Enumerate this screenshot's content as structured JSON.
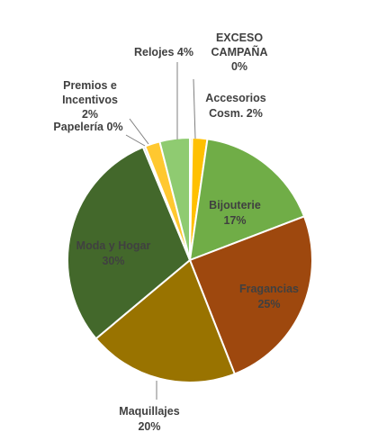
{
  "chart_data": {
    "type": "pie",
    "title": "",
    "colors": {
      "exceso_campana": "#FFE699",
      "accesorios_cosm": "#FFC000",
      "bijouterie": "#70AD47",
      "fragancias": "#9E480E",
      "maquillajes": "#997300",
      "moda_hogar": "#43682B",
      "papeleria": "#B4C7E7",
      "premios_incentivos": "#FFC830",
      "relojes": "#8FCB71",
      "border": "#FFFFFF",
      "leader": "#7F7F7F"
    },
    "slices": [
      {
        "key": "exceso_campana",
        "label_lines": [
          "EXCESO",
          "CAMPAÑA",
          "0%"
        ],
        "value": 0.3
      },
      {
        "key": "accesorios_cosm",
        "label_lines": [
          "Accesorios",
          "Cosm. 2%"
        ],
        "value": 2
      },
      {
        "key": "bijouterie",
        "label_lines": [
          "Bijouterie",
          "17%"
        ],
        "value": 17
      },
      {
        "key": "fragancias",
        "label_lines": [
          "Fragancias",
          "25%"
        ],
        "value": 25
      },
      {
        "key": "maquillajes",
        "label_lines": [
          "Maquillajes",
          "20%"
        ],
        "value": 20
      },
      {
        "key": "moda_hogar",
        "label_lines": [
          "Moda y Hogar",
          "30%"
        ],
        "value": 30
      },
      {
        "key": "papeleria",
        "label_lines": [
          "Papelería 0%"
        ],
        "value": 0.3
      },
      {
        "key": "premios_incentivos",
        "label_lines": [
          "Premios e",
          "Incentivos",
          "2%"
        ],
        "value": 2
      },
      {
        "key": "relojes",
        "label_lines": [
          "Relojes 4%"
        ],
        "value": 4
      }
    ]
  }
}
